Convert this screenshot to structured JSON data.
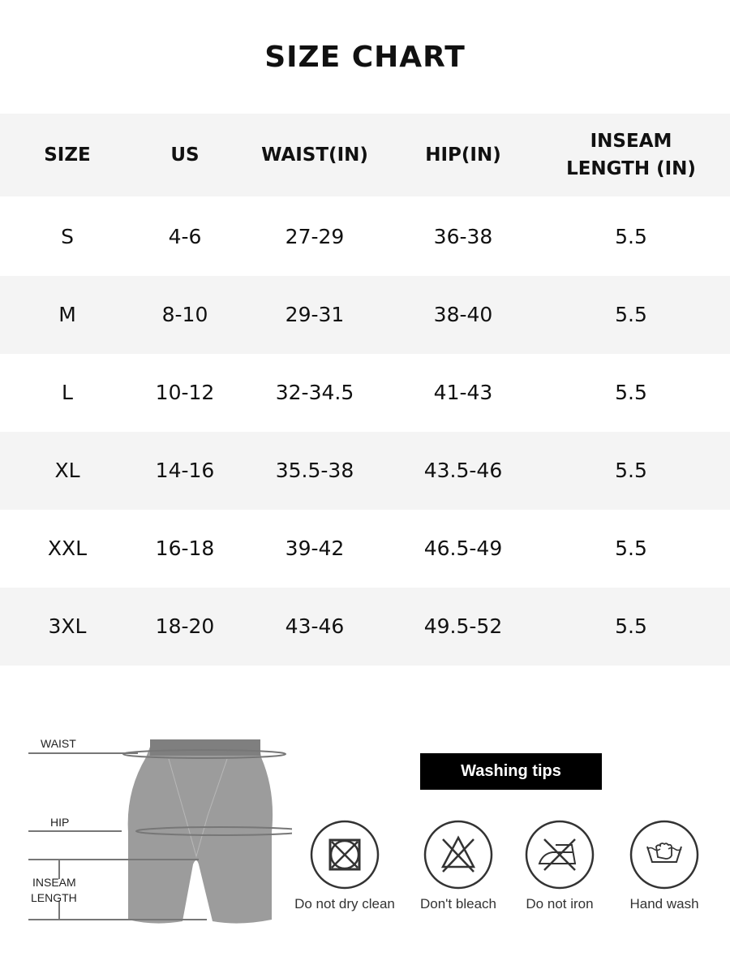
{
  "title": "SIZE CHART",
  "table": {
    "headers": [
      "SIZE",
      "US",
      "WAIST(IN)",
      "HIP(IN)",
      "INSEAM LENGTH (IN)"
    ],
    "rows": [
      [
        "S",
        "4-6",
        "27-29",
        "36-38",
        "5.5"
      ],
      [
        "M",
        "8-10",
        "29-31",
        "38-40",
        "5.5"
      ],
      [
        "L",
        "10-12",
        "32-34.5",
        "41-43",
        "5.5"
      ],
      [
        "XL",
        "14-16",
        "35.5-38",
        "43.5-46",
        "5.5"
      ],
      [
        "XXL",
        "16-18",
        "39-42",
        "46.5-49",
        "5.5"
      ],
      [
        "3XL",
        "18-20",
        "43-46",
        "49.5-52",
        "5.5"
      ]
    ]
  },
  "diagram": {
    "waist": "WAIST",
    "hip": "HIP",
    "inseam_1": "INSEAM",
    "inseam_2": "LENGTH"
  },
  "washing": {
    "title": "Washing tips",
    "items": [
      {
        "icon": "no-dry-clean-icon",
        "label": "Do not dry clean"
      },
      {
        "icon": "no-bleach-icon",
        "label": "Don't bleach"
      },
      {
        "icon": "no-iron-icon",
        "label": "Do not iron"
      },
      {
        "icon": "hand-wash-icon",
        "label": "Hand wash"
      }
    ]
  }
}
